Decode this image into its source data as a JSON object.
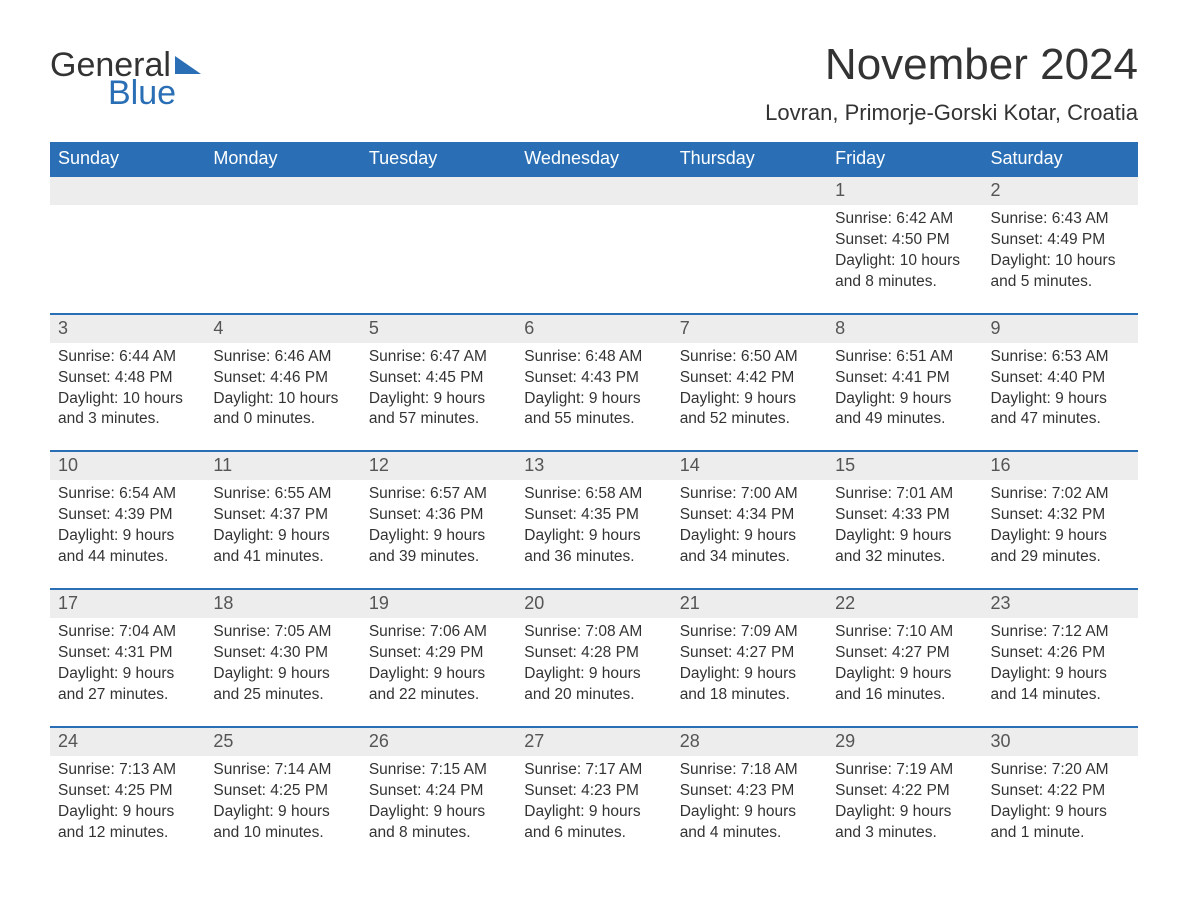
{
  "colors": {
    "header_bg": "#2a6fb5",
    "header_text": "#ffffff",
    "daynum_bg": "#ededed",
    "text": "#333333",
    "rule": "#2a6fb5",
    "page_bg": "#ffffff"
  },
  "logo": {
    "word1": "General",
    "word2": "Blue"
  },
  "title": "November 2024",
  "subtitle": "Lovran, Primorje-Gorski Kotar, Croatia",
  "dow": [
    "Sunday",
    "Monday",
    "Tuesday",
    "Wednesday",
    "Thursday",
    "Friday",
    "Saturday"
  ],
  "weeks": [
    [
      null,
      null,
      null,
      null,
      null,
      {
        "n": "1",
        "sunrise": "Sunrise: 6:42 AM",
        "sunset": "Sunset: 4:50 PM",
        "day1": "Daylight: 10 hours",
        "day2": "and 8 minutes."
      },
      {
        "n": "2",
        "sunrise": "Sunrise: 6:43 AM",
        "sunset": "Sunset: 4:49 PM",
        "day1": "Daylight: 10 hours",
        "day2": "and 5 minutes."
      }
    ],
    [
      {
        "n": "3",
        "sunrise": "Sunrise: 6:44 AM",
        "sunset": "Sunset: 4:48 PM",
        "day1": "Daylight: 10 hours",
        "day2": "and 3 minutes."
      },
      {
        "n": "4",
        "sunrise": "Sunrise: 6:46 AM",
        "sunset": "Sunset: 4:46 PM",
        "day1": "Daylight: 10 hours",
        "day2": "and 0 minutes."
      },
      {
        "n": "5",
        "sunrise": "Sunrise: 6:47 AM",
        "sunset": "Sunset: 4:45 PM",
        "day1": "Daylight: 9 hours",
        "day2": "and 57 minutes."
      },
      {
        "n": "6",
        "sunrise": "Sunrise: 6:48 AM",
        "sunset": "Sunset: 4:43 PM",
        "day1": "Daylight: 9 hours",
        "day2": "and 55 minutes."
      },
      {
        "n": "7",
        "sunrise": "Sunrise: 6:50 AM",
        "sunset": "Sunset: 4:42 PM",
        "day1": "Daylight: 9 hours",
        "day2": "and 52 minutes."
      },
      {
        "n": "8",
        "sunrise": "Sunrise: 6:51 AM",
        "sunset": "Sunset: 4:41 PM",
        "day1": "Daylight: 9 hours",
        "day2": "and 49 minutes."
      },
      {
        "n": "9",
        "sunrise": "Sunrise: 6:53 AM",
        "sunset": "Sunset: 4:40 PM",
        "day1": "Daylight: 9 hours",
        "day2": "and 47 minutes."
      }
    ],
    [
      {
        "n": "10",
        "sunrise": "Sunrise: 6:54 AM",
        "sunset": "Sunset: 4:39 PM",
        "day1": "Daylight: 9 hours",
        "day2": "and 44 minutes."
      },
      {
        "n": "11",
        "sunrise": "Sunrise: 6:55 AM",
        "sunset": "Sunset: 4:37 PM",
        "day1": "Daylight: 9 hours",
        "day2": "and 41 minutes."
      },
      {
        "n": "12",
        "sunrise": "Sunrise: 6:57 AM",
        "sunset": "Sunset: 4:36 PM",
        "day1": "Daylight: 9 hours",
        "day2": "and 39 minutes."
      },
      {
        "n": "13",
        "sunrise": "Sunrise: 6:58 AM",
        "sunset": "Sunset: 4:35 PM",
        "day1": "Daylight: 9 hours",
        "day2": "and 36 minutes."
      },
      {
        "n": "14",
        "sunrise": "Sunrise: 7:00 AM",
        "sunset": "Sunset: 4:34 PM",
        "day1": "Daylight: 9 hours",
        "day2": "and 34 minutes."
      },
      {
        "n": "15",
        "sunrise": "Sunrise: 7:01 AM",
        "sunset": "Sunset: 4:33 PM",
        "day1": "Daylight: 9 hours",
        "day2": "and 32 minutes."
      },
      {
        "n": "16",
        "sunrise": "Sunrise: 7:02 AM",
        "sunset": "Sunset: 4:32 PM",
        "day1": "Daylight: 9 hours",
        "day2": "and 29 minutes."
      }
    ],
    [
      {
        "n": "17",
        "sunrise": "Sunrise: 7:04 AM",
        "sunset": "Sunset: 4:31 PM",
        "day1": "Daylight: 9 hours",
        "day2": "and 27 minutes."
      },
      {
        "n": "18",
        "sunrise": "Sunrise: 7:05 AM",
        "sunset": "Sunset: 4:30 PM",
        "day1": "Daylight: 9 hours",
        "day2": "and 25 minutes."
      },
      {
        "n": "19",
        "sunrise": "Sunrise: 7:06 AM",
        "sunset": "Sunset: 4:29 PM",
        "day1": "Daylight: 9 hours",
        "day2": "and 22 minutes."
      },
      {
        "n": "20",
        "sunrise": "Sunrise: 7:08 AM",
        "sunset": "Sunset: 4:28 PM",
        "day1": "Daylight: 9 hours",
        "day2": "and 20 minutes."
      },
      {
        "n": "21",
        "sunrise": "Sunrise: 7:09 AM",
        "sunset": "Sunset: 4:27 PM",
        "day1": "Daylight: 9 hours",
        "day2": "and 18 minutes."
      },
      {
        "n": "22",
        "sunrise": "Sunrise: 7:10 AM",
        "sunset": "Sunset: 4:27 PM",
        "day1": "Daylight: 9 hours",
        "day2": "and 16 minutes."
      },
      {
        "n": "23",
        "sunrise": "Sunrise: 7:12 AM",
        "sunset": "Sunset: 4:26 PM",
        "day1": "Daylight: 9 hours",
        "day2": "and 14 minutes."
      }
    ],
    [
      {
        "n": "24",
        "sunrise": "Sunrise: 7:13 AM",
        "sunset": "Sunset: 4:25 PM",
        "day1": "Daylight: 9 hours",
        "day2": "and 12 minutes."
      },
      {
        "n": "25",
        "sunrise": "Sunrise: 7:14 AM",
        "sunset": "Sunset: 4:25 PM",
        "day1": "Daylight: 9 hours",
        "day2": "and 10 minutes."
      },
      {
        "n": "26",
        "sunrise": "Sunrise: 7:15 AM",
        "sunset": "Sunset: 4:24 PM",
        "day1": "Daylight: 9 hours",
        "day2": "and 8 minutes."
      },
      {
        "n": "27",
        "sunrise": "Sunrise: 7:17 AM",
        "sunset": "Sunset: 4:23 PM",
        "day1": "Daylight: 9 hours",
        "day2": "and 6 minutes."
      },
      {
        "n": "28",
        "sunrise": "Sunrise: 7:18 AM",
        "sunset": "Sunset: 4:23 PM",
        "day1": "Daylight: 9 hours",
        "day2": "and 4 minutes."
      },
      {
        "n": "29",
        "sunrise": "Sunrise: 7:19 AM",
        "sunset": "Sunset: 4:22 PM",
        "day1": "Daylight: 9 hours",
        "day2": "and 3 minutes."
      },
      {
        "n": "30",
        "sunrise": "Sunrise: 7:20 AM",
        "sunset": "Sunset: 4:22 PM",
        "day1": "Daylight: 9 hours",
        "day2": "and 1 minute."
      }
    ]
  ]
}
